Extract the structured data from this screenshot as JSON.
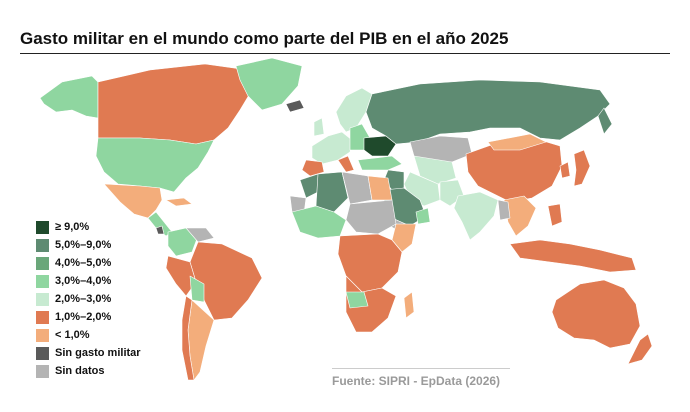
{
  "title": "Gasto militar en el mundo como parte del PIB en el año 2025",
  "source": "Fuente: SIPRI - EpData (2026)",
  "colors": {
    "ge9": "#1f4a2c",
    "c5_9": "#5e8b72",
    "c4_5": "#6aa77a",
    "c3_4": "#8fd6a0",
    "c2_3": "#c7ead1",
    "c1_2": "#e07a52",
    "lt1": "#f3ad7b",
    "none": "#5a5a5a",
    "nodata": "#b4b4b4",
    "border": "#ffffff"
  },
  "legend": [
    {
      "label": "≥ 9,0%",
      "color": "#1f4a2c"
    },
    {
      "label": "5,0%–9,0%",
      "color": "#5e8b72"
    },
    {
      "label": "4,0%–5,0%",
      "color": "#6aa77a"
    },
    {
      "label": "3,0%–4,0%",
      "color": "#8fd6a0"
    },
    {
      "label": "2,0%–3,0%",
      "color": "#c7ead1"
    },
    {
      "label": "1,0%–2,0%",
      "color": "#e07a52"
    },
    {
      "label": "< 1,0%",
      "color": "#f3ad7b"
    },
    {
      "label": "Sin gasto militar",
      "color": "#5a5a5a"
    },
    {
      "label": "Sin datos",
      "color": "#b4b4b4"
    }
  ]
}
